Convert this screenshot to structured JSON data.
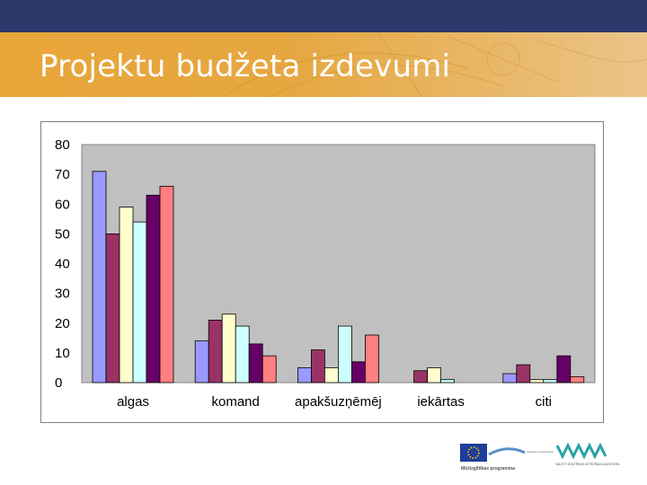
{
  "slide": {
    "title": "Projektu budžeta izdevumi"
  },
  "footer": {
    "eu_logo_caption": "Mūžizglītības programma",
    "eu_logo_tagline": "Izglītība un kultūra DG",
    "agency_logo_caption": "VALSTS IZGLĪTĪBAS ATTĪSTĪBAS AĢENTŪRA"
  },
  "colors": {
    "top_band": "#2b3a6b",
    "title_band": "#e6a741",
    "plot_area": "#c0c0c0"
  },
  "chart_data": {
    "type": "bar",
    "title": "",
    "xlabel": "",
    "ylabel": "",
    "ylim": [
      0,
      80
    ],
    "yticks": [
      0,
      10,
      20,
      30,
      40,
      50,
      60,
      70,
      80
    ],
    "grid": false,
    "legend": "none",
    "categories": [
      "algas",
      "komand",
      "apakšuzņēmēj",
      "iekārtas",
      "citi"
    ],
    "series": [
      {
        "color": "#9999ff",
        "values": [
          71,
          14,
          5,
          0,
          3
        ]
      },
      {
        "color": "#993366",
        "values": [
          50,
          21,
          11,
          4,
          6
        ]
      },
      {
        "color": "#ffffcc",
        "values": [
          59,
          23,
          5,
          5,
          1
        ]
      },
      {
        "color": "#ccffff",
        "values": [
          54,
          19,
          19,
          1,
          1
        ]
      },
      {
        "color": "#660066",
        "values": [
          63,
          13,
          7,
          0,
          9
        ]
      },
      {
        "color": "#ff8080",
        "values": [
          66,
          9,
          16,
          0,
          2
        ]
      }
    ]
  }
}
